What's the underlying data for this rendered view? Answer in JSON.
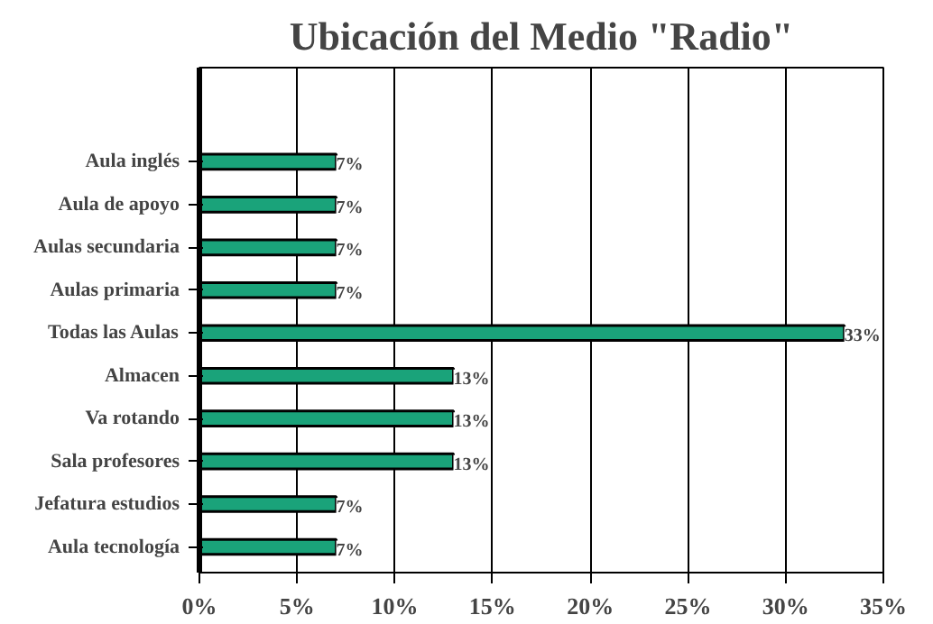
{
  "chart_data": {
    "type": "bar",
    "orientation": "horizontal",
    "title": "Ubicación del Medio \"Radio\"",
    "categories": [
      "Aula inglés",
      "Aula de apoyo",
      "Aulas secundaria",
      "Aulas primaria",
      "Todas las Aulas",
      "Almacen",
      "Va rotando",
      "Sala profesores",
      "Jefatura estudios",
      "Aula tecnología"
    ],
    "values": [
      7,
      7,
      7,
      7,
      33,
      13,
      13,
      13,
      7,
      7
    ],
    "value_labels": [
      "7%",
      "7%",
      "7%",
      "7%",
      "33%",
      "13%",
      "13%",
      "13%",
      "7%",
      "7%"
    ],
    "color": "#1aa37a",
    "xlim": [
      0,
      35
    ],
    "xticks": [
      {
        "value": 0,
        "label": "0%"
      },
      {
        "value": 5,
        "label": "5%"
      },
      {
        "value": 10,
        "label": "10%"
      },
      {
        "value": 15,
        "label": "15%"
      },
      {
        "value": 20,
        "label": "20%"
      },
      {
        "value": 25,
        "label": "25%"
      },
      {
        "value": 30,
        "label": "30%"
      },
      {
        "value": 35,
        "label": "35%"
      }
    ],
    "grid": "x"
  }
}
